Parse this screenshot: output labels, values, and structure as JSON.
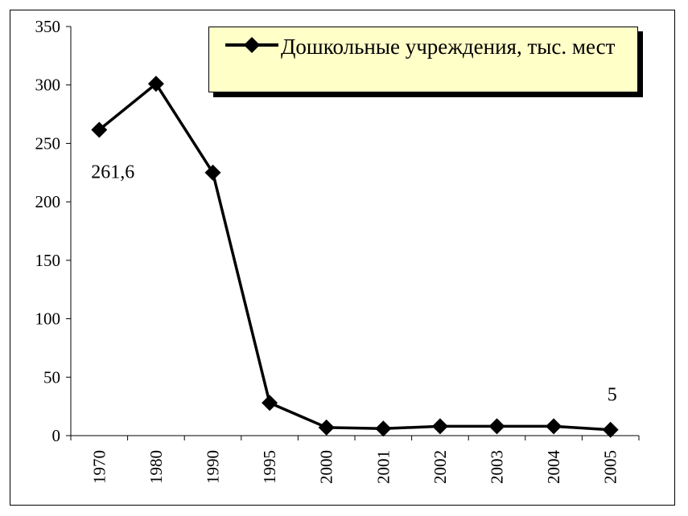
{
  "chart_data": {
    "type": "line",
    "categories": [
      "1970",
      "1980",
      "1990",
      "1995",
      "2000",
      "2001",
      "2002",
      "2003",
      "2004",
      "2005"
    ],
    "series": [
      {
        "name": "Дошкольные учреждения, тыс. мест",
        "values": [
          261.6,
          301,
          225,
          28,
          7,
          6,
          8,
          8,
          8,
          5
        ],
        "color": "#000000",
        "marker": "diamond"
      }
    ],
    "data_labels": [
      {
        "category": "1970",
        "text": "261,6"
      },
      {
        "category": "2005",
        "text": "5"
      }
    ],
    "y_ticks": [
      "0",
      "50",
      "100",
      "150",
      "200",
      "250",
      "300",
      "350"
    ],
    "ylim": [
      0,
      350
    ],
    "grid": false,
    "legend_position": "top-right",
    "legend_background": "#ffffc8"
  }
}
